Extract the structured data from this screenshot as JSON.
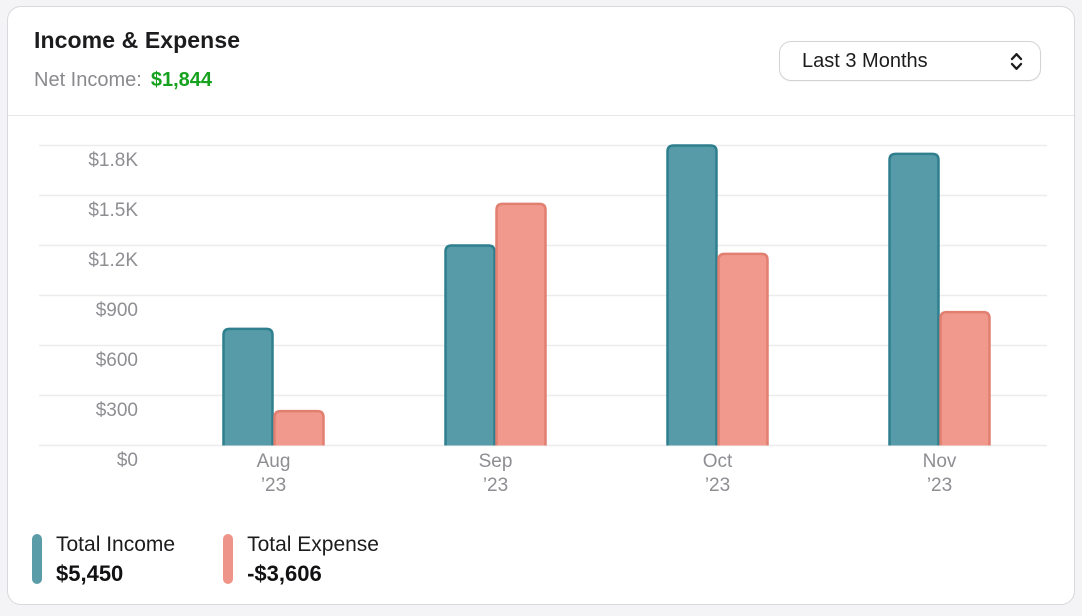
{
  "header": {
    "title": "Income & Expense",
    "net_income_label": "Net Income:",
    "net_income_value": "$1,844",
    "period_selector": "Last 3 Months"
  },
  "chart_data": {
    "type": "bar",
    "title": "Income & Expense",
    "categories": [
      "Aug ’23",
      "Sep ’23",
      "Oct ’23",
      "Nov ’23"
    ],
    "category_lines": [
      [
        "Aug",
        "’23"
      ],
      [
        "Sep",
        "’23"
      ],
      [
        "Oct",
        "’23"
      ],
      [
        "Nov",
        "’23"
      ]
    ],
    "series": [
      {
        "name": "Total Income",
        "values": [
          700,
          1200,
          1800,
          1750
        ],
        "color": "#579ba8",
        "stroke": "#2f7f8e"
      },
      {
        "name": "Total Expense",
        "values": [
          206,
          1450,
          1150,
          800
        ],
        "color": "#f0998c",
        "stroke": "#e17f71"
      }
    ],
    "y_ticks": [
      {
        "value": 1800,
        "label": "$1.8K"
      },
      {
        "value": 1500,
        "label": "$1.5K"
      },
      {
        "value": 1200,
        "label": "$1.2K"
      },
      {
        "value": 900,
        "label": "$900"
      },
      {
        "value": 600,
        "label": "$600"
      },
      {
        "value": 300,
        "label": "$300"
      },
      {
        "value": 0,
        "label": "$0"
      }
    ],
    "ylim": [
      0,
      1980
    ],
    "grid": true,
    "legend_position": "bottom",
    "gridline_color": "#ececee"
  },
  "legend": {
    "items": [
      {
        "label": "Total Income",
        "value": "$5,450",
        "color": "#5a9ca8"
      },
      {
        "label": "Total Expense",
        "value": "-$3,606",
        "color": "#ef9488"
      }
    ]
  }
}
